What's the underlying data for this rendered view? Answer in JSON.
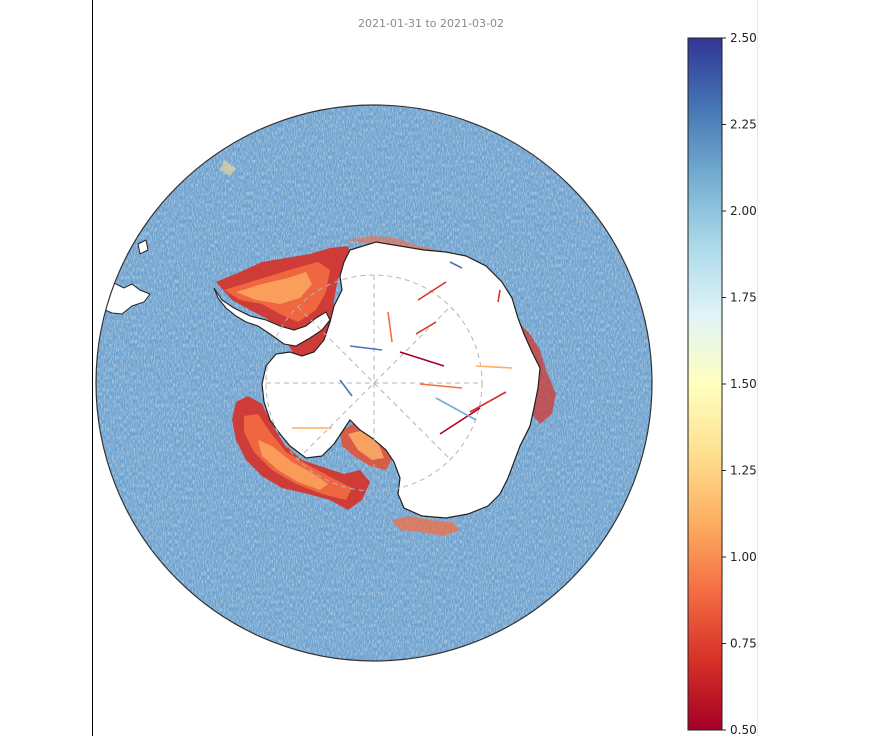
{
  "title": "2021-01-31 to 2021-03-02",
  "colorbar": {
    "min": 0.5,
    "max": 2.5,
    "colormap": "RdYlBu",
    "ticks": [
      "0.50",
      "0.75",
      "1.00",
      "1.25",
      "1.50",
      "1.75",
      "2.00",
      "2.25",
      "2.50"
    ]
  },
  "colors": {
    "ocean": "#6fa3cf",
    "land": "#ffffff",
    "coast": "#222222",
    "graticule": "#b0b0b0"
  }
}
